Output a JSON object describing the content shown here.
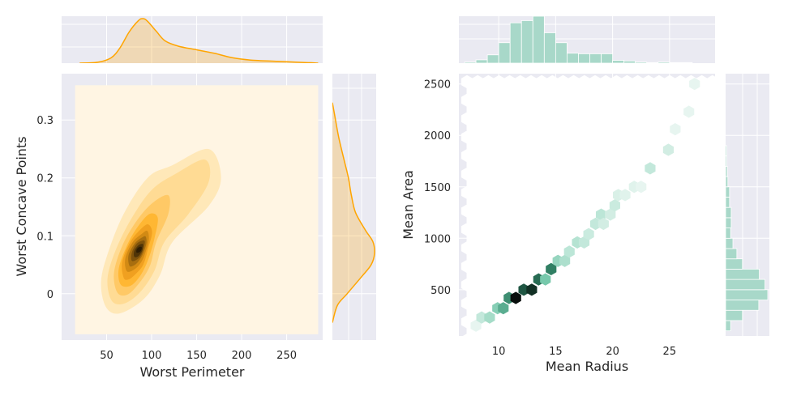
{
  "chart_data": [
    {
      "type": "kde2d",
      "xlabel": "Worst Perimeter",
      "ylabel": "Worst Concave Points",
      "xlim": [
        0,
        290
      ],
      "ylim": [
        -0.08,
        0.38
      ],
      "xticks": [
        50,
        100,
        150,
        200,
        250
      ],
      "yticks": [
        0.0,
        0.1,
        0.2,
        0.3
      ],
      "grid": true,
      "color": "#FFA500",
      "fill_range": {
        "x": [
          15,
          285
        ],
        "y": [
          -0.07,
          0.36
        ]
      },
      "density_center": {
        "x": 87,
        "y": 0.075
      },
      "marginal_x": {
        "x": [
          20,
          40,
          55,
          65,
          75,
          85,
          90,
          95,
          105,
          115,
          130,
          150,
          170,
          190,
          210,
          240,
          270,
          285
        ],
        "density": [
          0.0,
          0.02,
          0.12,
          0.35,
          0.7,
          0.95,
          1.0,
          0.95,
          0.72,
          0.5,
          0.38,
          0.3,
          0.22,
          0.12,
          0.07,
          0.04,
          0.015,
          0.0
        ]
      },
      "marginal_y": {
        "y": [
          -0.05,
          -0.02,
          0.0,
          0.03,
          0.05,
          0.07,
          0.09,
          0.11,
          0.14,
          0.17,
          0.2,
          0.23,
          0.27,
          0.31,
          0.33
        ],
        "density": [
          0.0,
          0.12,
          0.35,
          0.7,
          0.92,
          1.0,
          0.96,
          0.78,
          0.55,
          0.45,
          0.38,
          0.28,
          0.15,
          0.05,
          0.0
        ]
      }
    },
    {
      "type": "hexbin",
      "xlabel": "Mean Radius",
      "ylabel": "Mean Area",
      "xlim": [
        6.5,
        29
      ],
      "ylim": [
        50,
        2600
      ],
      "xticks": [
        10,
        15,
        20,
        25
      ],
      "yticks": [
        500,
        1000,
        1500,
        2000,
        2500
      ],
      "grid": true,
      "color": "#7fc9b0",
      "bins": [
        {
          "x": 8.0,
          "y": 150,
          "count": 1
        },
        {
          "x": 8.5,
          "y": 230,
          "count": 6
        },
        {
          "x": 9.2,
          "y": 230,
          "count": 10
        },
        {
          "x": 9.9,
          "y": 320,
          "count": 14
        },
        {
          "x": 10.4,
          "y": 320,
          "count": 20
        },
        {
          "x": 10.9,
          "y": 420,
          "count": 24
        },
        {
          "x": 11.5,
          "y": 420,
          "count": 38
        },
        {
          "x": 12.2,
          "y": 500,
          "count": 30
        },
        {
          "x": 12.9,
          "y": 500,
          "count": 34
        },
        {
          "x": 13.5,
          "y": 600,
          "count": 28
        },
        {
          "x": 14.1,
          "y": 600,
          "count": 16
        },
        {
          "x": 14.6,
          "y": 700,
          "count": 26
        },
        {
          "x": 15.2,
          "y": 780,
          "count": 12
        },
        {
          "x": 15.8,
          "y": 780,
          "count": 9
        },
        {
          "x": 16.2,
          "y": 870,
          "count": 7
        },
        {
          "x": 16.9,
          "y": 960,
          "count": 8
        },
        {
          "x": 17.5,
          "y": 960,
          "count": 6
        },
        {
          "x": 17.9,
          "y": 1040,
          "count": 5
        },
        {
          "x": 18.5,
          "y": 1140,
          "count": 6
        },
        {
          "x": 19.0,
          "y": 1230,
          "count": 7
        },
        {
          "x": 19.2,
          "y": 1140,
          "count": 4
        },
        {
          "x": 19.8,
          "y": 1230,
          "count": 4
        },
        {
          "x": 20.2,
          "y": 1320,
          "count": 5
        },
        {
          "x": 20.5,
          "y": 1420,
          "count": 3
        },
        {
          "x": 21.1,
          "y": 1420,
          "count": 2
        },
        {
          "x": 21.9,
          "y": 1500,
          "count": 2
        },
        {
          "x": 22.5,
          "y": 1500,
          "count": 1
        },
        {
          "x": 23.3,
          "y": 1680,
          "count": 6
        },
        {
          "x": 24.9,
          "y": 1860,
          "count": 4
        },
        {
          "x": 25.5,
          "y": 2060,
          "count": 1
        },
        {
          "x": 26.7,
          "y": 2230,
          "count": 1
        },
        {
          "x": 27.2,
          "y": 2500,
          "count": 1
        }
      ],
      "marginal_x": {
        "bins": [
          7,
          8,
          9,
          10,
          11,
          12,
          13,
          14,
          15,
          16,
          17,
          18,
          19,
          20,
          21,
          22,
          23,
          24,
          25,
          26,
          27
        ],
        "counts": [
          2,
          6,
          15,
          37,
          73,
          77,
          85,
          55,
          37,
          18,
          17,
          17,
          17,
          5,
          4,
          2,
          1,
          2,
          1,
          1
        ]
      },
      "marginal_y": {
        "bins": [
          100,
          200,
          300,
          400,
          500,
          600,
          700,
          800,
          900,
          1000,
          1100,
          1200,
          1300,
          1400,
          1500,
          1600,
          1700,
          1800,
          1900
        ],
        "counts": [
          9,
          30,
          59,
          75,
          70,
          60,
          30,
          20,
          13,
          9,
          10,
          10,
          7,
          7,
          4,
          3,
          2,
          2
        ]
      }
    }
  ]
}
